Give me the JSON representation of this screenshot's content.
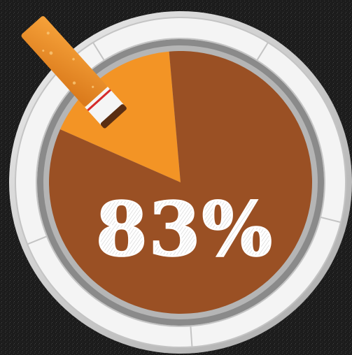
{
  "chart_data": {
    "type": "pie",
    "slices": [
      {
        "label": "",
        "value": 83,
        "color": "#9a5024"
      },
      {
        "label": "",
        "value": 17,
        "color": "#f39425"
      }
    ],
    "data_label": "83%"
  },
  "colors": {
    "background": "#1c1c1c",
    "ashtray_rim": "#d9d9d9",
    "ashtray_pad": "#f4f4f4",
    "large_slice": "#9a5024",
    "small_slice": "#f39425",
    "label_text": "#ffffff"
  },
  "icons": [
    "cigarette-icon",
    "ashtray-icon"
  ]
}
